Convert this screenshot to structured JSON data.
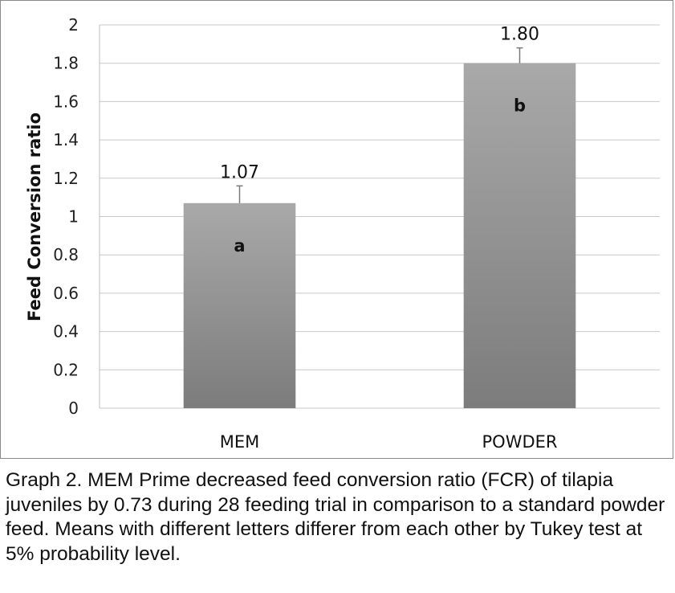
{
  "chart_data": {
    "type": "bar",
    "categories": [
      "MEM",
      "POWDER"
    ],
    "values": [
      1.07,
      1.8
    ],
    "value_labels": [
      "1.07",
      "1.80"
    ],
    "error_upper": [
      1.16,
      1.88
    ],
    "group_letters": [
      "a",
      "b"
    ],
    "ylabel": "Feed Conversion ratio",
    "xlabel": "",
    "title": "",
    "ylim": [
      0,
      2
    ],
    "yticks": [
      0,
      0.2,
      0.4,
      0.6,
      0.8,
      1,
      1.2,
      1.4,
      1.6,
      1.8,
      2
    ],
    "ytick_labels": [
      "0",
      "0.2",
      "0.4",
      "0.6",
      "0.8",
      "1",
      "1.2",
      "1.4",
      "1.6",
      "1.8",
      "2"
    ],
    "grid": true,
    "legend": "none",
    "bar_color_top": "#a9a9a9",
    "bar_color_bottom": "#7c7c7c"
  },
  "caption": "Graph 2. MEM Prime decreased feed conversion ratio (FCR) of tilapia juveniles by 0.73 during 28 feeding trial in comparison to a standard powder feed. Means with different letters differer from each other by Tukey test at 5% probability level."
}
